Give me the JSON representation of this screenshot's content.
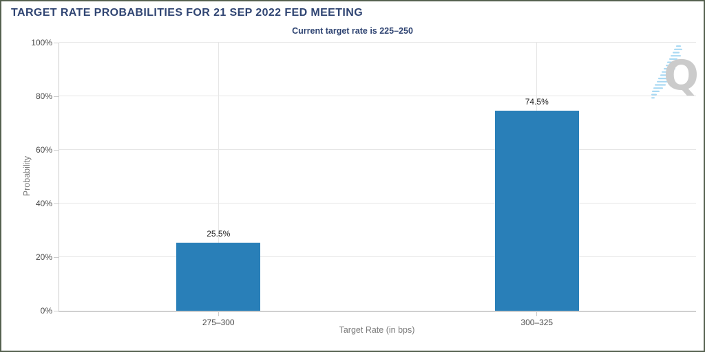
{
  "chart_data": {
    "type": "bar",
    "title": "TARGET RATE PROBABILITIES FOR 21 SEP 2022 FED MEETING",
    "subtitle": "Current target rate is 225–250",
    "xlabel": "Target Rate (in bps)",
    "ylabel": "Probability",
    "categories": [
      "275–300",
      "300–325"
    ],
    "values": [
      25.5,
      74.5
    ],
    "value_labels": [
      "25.5%",
      "74.5%"
    ],
    "ylim": [
      0,
      100
    ],
    "yticks": [
      0,
      20,
      40,
      60,
      80,
      100
    ],
    "ytick_labels": [
      "0%",
      "20%",
      "40%",
      "60%",
      "80%",
      "100%"
    ],
    "grid": true,
    "legend": "none",
    "bar_color": "#297fb8"
  },
  "colors": {
    "title_text": "#2f4472",
    "bar": "#297fb8",
    "gridline": "#e6e6e6",
    "axis_line": "#cccccc",
    "tick_text": "#4a4a4a",
    "axis_title_text": "#7a7a7a",
    "value_label_text": "#222222",
    "frame_border": "#55614f",
    "watermark_letter": "#c9c9c9",
    "watermark_stripes": "#a5d7f3"
  },
  "watermark": {
    "letter": "Q"
  }
}
